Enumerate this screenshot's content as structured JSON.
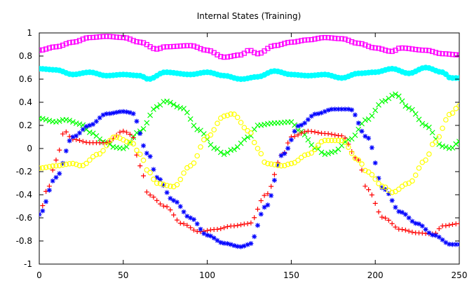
{
  "chart_data": {
    "type": "scatter",
    "title": "Internal States (Training)",
    "xlabel": "",
    "ylabel": "",
    "xlim": [
      0,
      250
    ],
    "ylim": [
      -1,
      1
    ],
    "xticks": [
      0,
      50,
      100,
      150,
      200,
      250
    ],
    "yticks": [
      -1,
      -0.8,
      -0.6,
      -0.4,
      -0.2,
      0,
      0.2,
      0.4,
      0.6,
      0.8,
      1
    ],
    "grid": false,
    "legend": "none",
    "series": [
      {
        "color": "#ff00ff",
        "marker": "square",
        "keyframes": [
          [
            0,
            0.85
          ],
          [
            10,
            0.88
          ],
          [
            20,
            0.92
          ],
          [
            30,
            0.96
          ],
          [
            40,
            0.97
          ],
          [
            50,
            0.96
          ],
          [
            60,
            0.92
          ],
          [
            70,
            0.86
          ],
          [
            75,
            0.88
          ],
          [
            90,
            0.89
          ],
          [
            100,
            0.85
          ],
          [
            110,
            0.79
          ],
          [
            120,
            0.81
          ],
          [
            125,
            0.85
          ],
          [
            130,
            0.82
          ],
          [
            140,
            0.89
          ],
          [
            150,
            0.92
          ],
          [
            160,
            0.94
          ],
          [
            170,
            0.96
          ],
          [
            180,
            0.95
          ],
          [
            190,
            0.91
          ],
          [
            200,
            0.87
          ],
          [
            210,
            0.84
          ],
          [
            215,
            0.87
          ],
          [
            230,
            0.85
          ],
          [
            240,
            0.82
          ],
          [
            250,
            0.81
          ]
        ]
      },
      {
        "color": "#00ffff",
        "marker": "circle-filled",
        "keyframes": [
          [
            0,
            0.69
          ],
          [
            10,
            0.68
          ],
          [
            20,
            0.64
          ],
          [
            30,
            0.66
          ],
          [
            40,
            0.63
          ],
          [
            50,
            0.64
          ],
          [
            60,
            0.63
          ],
          [
            65,
            0.6
          ],
          [
            75,
            0.66
          ],
          [
            90,
            0.64
          ],
          [
            100,
            0.66
          ],
          [
            110,
            0.63
          ],
          [
            120,
            0.6
          ],
          [
            130,
            0.62
          ],
          [
            140,
            0.67
          ],
          [
            150,
            0.64
          ],
          [
            160,
            0.63
          ],
          [
            170,
            0.64
          ],
          [
            180,
            0.61
          ],
          [
            190,
            0.65
          ],
          [
            200,
            0.66
          ],
          [
            210,
            0.69
          ],
          [
            220,
            0.65
          ],
          [
            230,
            0.7
          ],
          [
            240,
            0.66
          ],
          [
            245,
            0.61
          ],
          [
            250,
            0.61
          ]
        ]
      },
      {
        "color": "#00ff00",
        "marker": "cross",
        "keyframes": [
          [
            0,
            0.26
          ],
          [
            10,
            0.23
          ],
          [
            15,
            0.25
          ],
          [
            25,
            0.21
          ],
          [
            30,
            0.14
          ],
          [
            40,
            0.05
          ],
          [
            45,
            0.01
          ],
          [
            50,
            0.0
          ],
          [
            60,
            0.15
          ],
          [
            70,
            0.36
          ],
          [
            75,
            0.41
          ],
          [
            85,
            0.35
          ],
          [
            95,
            0.16
          ],
          [
            105,
            0.0
          ],
          [
            110,
            -0.05
          ],
          [
            115,
            -0.01
          ],
          [
            125,
            0.1
          ],
          [
            130,
            0.2
          ],
          [
            140,
            0.22
          ],
          [
            150,
            0.23
          ],
          [
            155,
            0.15
          ],
          [
            165,
            0.0
          ],
          [
            170,
            -0.05
          ],
          [
            175,
            -0.03
          ],
          [
            185,
            0.08
          ],
          [
            195,
            0.25
          ],
          [
            205,
            0.41
          ],
          [
            212,
            0.47
          ],
          [
            220,
            0.35
          ],
          [
            230,
            0.2
          ],
          [
            240,
            0.02
          ],
          [
            245,
            0.0
          ],
          [
            250,
            0.06
          ]
        ]
      },
      {
        "color": "#ff0000",
        "marker": "plus",
        "keyframes": [
          [
            0,
            -0.57
          ],
          [
            5,
            -0.35
          ],
          [
            10,
            -0.1
          ],
          [
            15,
            0.15
          ],
          [
            20,
            0.08
          ],
          [
            30,
            0.05
          ],
          [
            40,
            0.05
          ],
          [
            50,
            0.15
          ],
          [
            55,
            0.12
          ],
          [
            60,
            -0.15
          ],
          [
            65,
            -0.4
          ],
          [
            75,
            -0.5
          ],
          [
            85,
            -0.65
          ],
          [
            95,
            -0.72
          ],
          [
            105,
            -0.7
          ],
          [
            115,
            -0.67
          ],
          [
            125,
            -0.65
          ],
          [
            135,
            -0.4
          ],
          [
            145,
            -0.05
          ],
          [
            150,
            0.1
          ],
          [
            160,
            0.15
          ],
          [
            170,
            0.13
          ],
          [
            180,
            0.11
          ],
          [
            190,
            -0.1
          ],
          [
            195,
            -0.35
          ],
          [
            205,
            -0.6
          ],
          [
            215,
            -0.7
          ],
          [
            225,
            -0.73
          ],
          [
            235,
            -0.74
          ],
          [
            240,
            -0.67
          ],
          [
            250,
            -0.65
          ]
        ]
      },
      {
        "color": "#0000ff",
        "marker": "star",
        "keyframes": [
          [
            0,
            -0.57
          ],
          [
            10,
            -0.25
          ],
          [
            20,
            0.1
          ],
          [
            30,
            0.2
          ],
          [
            40,
            0.3
          ],
          [
            50,
            0.32
          ],
          [
            55,
            0.31
          ],
          [
            65,
            -0.05
          ],
          [
            70,
            -0.25
          ],
          [
            80,
            -0.45
          ],
          [
            90,
            -0.6
          ],
          [
            100,
            -0.75
          ],
          [
            110,
            -0.82
          ],
          [
            120,
            -0.85
          ],
          [
            125,
            -0.83
          ],
          [
            135,
            -0.5
          ],
          [
            145,
            -0.05
          ],
          [
            155,
            0.2
          ],
          [
            165,
            0.3
          ],
          [
            175,
            0.34
          ],
          [
            185,
            0.34
          ],
          [
            195,
            0.1
          ],
          [
            205,
            -0.35
          ],
          [
            215,
            -0.55
          ],
          [
            225,
            -0.65
          ],
          [
            235,
            -0.75
          ],
          [
            245,
            -0.83
          ],
          [
            250,
            -0.83
          ]
        ]
      },
      {
        "color": "#ffff00",
        "marker": "circle-open",
        "keyframes": [
          [
            0,
            -0.17
          ],
          [
            10,
            -0.15
          ],
          [
            20,
            -0.13
          ],
          [
            25,
            -0.15
          ],
          [
            35,
            -0.05
          ],
          [
            45,
            0.1
          ],
          [
            55,
            0.05
          ],
          [
            60,
            -0.05
          ],
          [
            65,
            -0.2
          ],
          [
            70,
            -0.3
          ],
          [
            80,
            -0.33
          ],
          [
            90,
            -0.15
          ],
          [
            100,
            0.1
          ],
          [
            110,
            0.28
          ],
          [
            115,
            0.3
          ],
          [
            125,
            0.15
          ],
          [
            130,
            0.0
          ],
          [
            135,
            -0.13
          ],
          [
            145,
            -0.15
          ],
          [
            150,
            -0.13
          ],
          [
            160,
            -0.05
          ],
          [
            170,
            0.07
          ],
          [
            180,
            0.07
          ],
          [
            190,
            -0.1
          ],
          [
            195,
            -0.2
          ],
          [
            205,
            -0.33
          ],
          [
            210,
            -0.38
          ],
          [
            220,
            -0.3
          ],
          [
            230,
            -0.1
          ],
          [
            235,
            0.05
          ],
          [
            245,
            0.3
          ],
          [
            250,
            0.37
          ]
        ]
      }
    ]
  }
}
